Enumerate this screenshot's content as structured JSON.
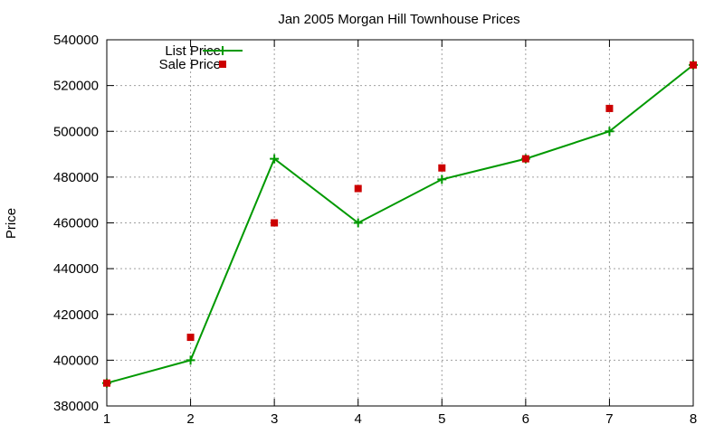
{
  "chart_data": {
    "type": "line",
    "title": "Jan 2005 Morgan Hill Townhouse Prices",
    "xlabel": "",
    "ylabel": "Price",
    "xlim": [
      1,
      8
    ],
    "ylim": [
      380000,
      540000
    ],
    "x_ticks": [
      "1",
      "2",
      "3",
      "4",
      "5",
      "6",
      "7",
      "8"
    ],
    "y_ticks": [
      "380000",
      "400000",
      "420000",
      "440000",
      "460000",
      "480000",
      "500000",
      "520000",
      "540000"
    ],
    "grid": true,
    "legend_position": "top-left",
    "series": [
      {
        "name": "List Price",
        "style": "line with cross markers",
        "color": "#009900",
        "x": [
          1,
          2,
          3,
          4,
          5,
          6,
          7,
          8
        ],
        "values": [
          390000,
          400000,
          488000,
          460000,
          479000,
          488000,
          500000,
          529000
        ]
      },
      {
        "name": "Sale Price",
        "style": "square markers",
        "color": "#cc0000",
        "x": [
          1,
          2,
          3,
          4,
          5,
          6,
          7,
          8
        ],
        "values": [
          390000,
          410000,
          460000,
          475000,
          484000,
          488000,
          510000,
          529000
        ]
      }
    ]
  }
}
